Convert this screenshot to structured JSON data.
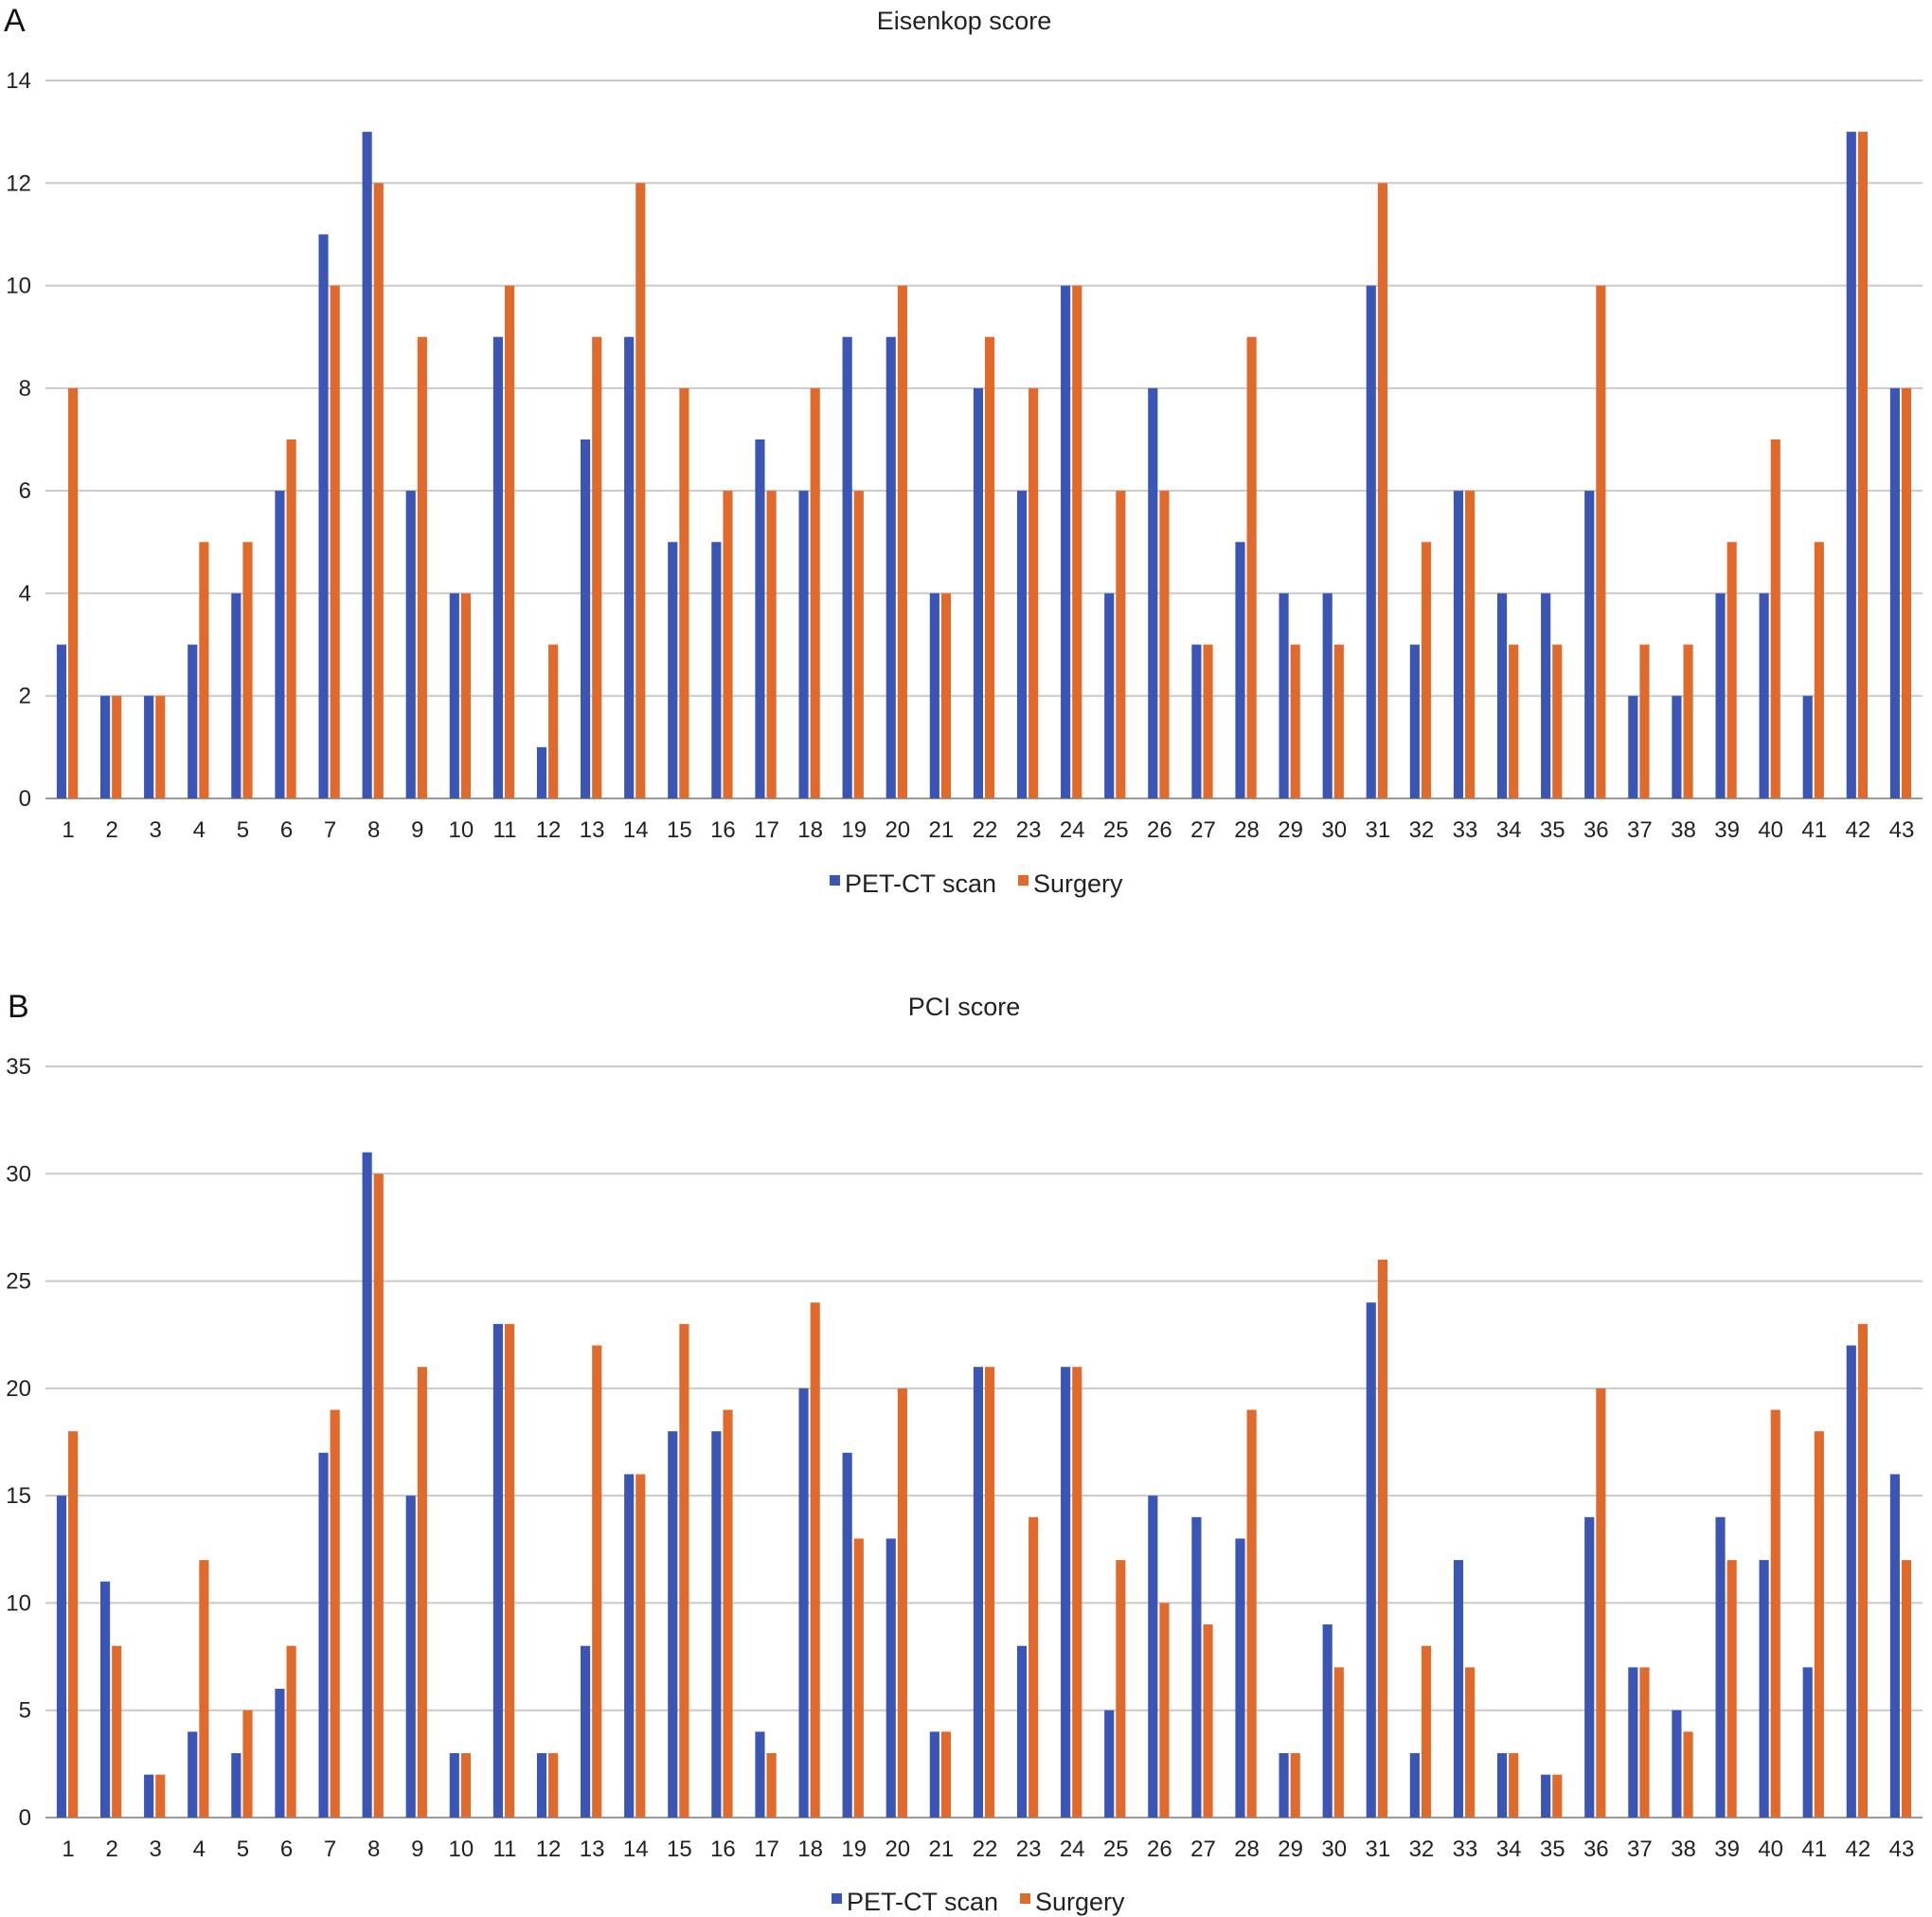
{
  "panels": [
    {
      "letter": "A",
      "legend": {
        "series1": "PET-CT scan",
        "series2": "Surgery"
      }
    },
    {
      "letter": "B",
      "legend": {
        "series1": "PET-CT scan",
        "series2": "Surgery"
      }
    }
  ],
  "colors": {
    "pet_ct": "#3a55b4",
    "surgery": "#e06a2c"
  },
  "chart_data": [
    {
      "type": "bar",
      "title": "Eisenkop score",
      "categories": [
        "1",
        "2",
        "3",
        "4",
        "5",
        "6",
        "7",
        "8",
        "9",
        "10",
        "11",
        "12",
        "13",
        "14",
        "15",
        "16",
        "17",
        "18",
        "19",
        "20",
        "21",
        "22",
        "23",
        "24",
        "25",
        "26",
        "27",
        "28",
        "29",
        "30",
        "31",
        "32",
        "33",
        "34",
        "35",
        "36",
        "37",
        "38",
        "39",
        "40",
        "41",
        "42",
        "43"
      ],
      "series": [
        {
          "name": "PET-CT scan",
          "values": [
            3,
            2,
            2,
            3,
            4,
            6,
            11,
            13,
            6,
            4,
            9,
            1,
            7,
            9,
            5,
            5,
            7,
            6,
            9,
            9,
            4,
            8,
            6,
            10,
            4,
            8,
            3,
            5,
            4,
            4,
            10,
            3,
            6,
            4,
            4,
            6,
            2,
            2,
            4,
            4,
            2,
            13,
            8
          ]
        },
        {
          "name": "Surgery",
          "values": [
            8,
            2,
            2,
            5,
            5,
            7,
            10,
            12,
            9,
            4,
            10,
            3,
            9,
            12,
            8,
            6,
            6,
            8,
            6,
            10,
            4,
            9,
            8,
            10,
            6,
            6,
            3,
            9,
            3,
            3,
            12,
            5,
            6,
            3,
            3,
            10,
            3,
            3,
            5,
            7,
            5,
            13,
            8
          ]
        }
      ],
      "ylim": [
        0,
        14
      ],
      "yticks": [
        "0",
        "2",
        "4",
        "6",
        "8",
        "10",
        "12",
        "14"
      ],
      "grid": true,
      "legend_position": "bottom"
    },
    {
      "type": "bar",
      "title": "PCI score",
      "categories": [
        "1",
        "2",
        "3",
        "4",
        "5",
        "6",
        "7",
        "8",
        "9",
        "10",
        "11",
        "12",
        "13",
        "14",
        "15",
        "16",
        "17",
        "18",
        "19",
        "20",
        "21",
        "22",
        "23",
        "24",
        "25",
        "26",
        "27",
        "28",
        "29",
        "30",
        "31",
        "32",
        "33",
        "34",
        "35",
        "36",
        "37",
        "38",
        "39",
        "40",
        "41",
        "42",
        "43"
      ],
      "series": [
        {
          "name": "PET-CT scan",
          "values": [
            15,
            11,
            2,
            4,
            3,
            6,
            17,
            31,
            15,
            3,
            23,
            3,
            8,
            16,
            18,
            18,
            4,
            20,
            17,
            13,
            4,
            21,
            8,
            21,
            5,
            15,
            14,
            13,
            3,
            9,
            24,
            3,
            12,
            3,
            2,
            14,
            7,
            5,
            14,
            12,
            7,
            22,
            16
          ]
        },
        {
          "name": "Surgery",
          "values": [
            18,
            8,
            2,
            12,
            5,
            8,
            19,
            30,
            21,
            3,
            23,
            3,
            22,
            16,
            23,
            19,
            3,
            24,
            13,
            20,
            4,
            21,
            14,
            21,
            12,
            10,
            9,
            19,
            3,
            7,
            26,
            8,
            7,
            3,
            2,
            20,
            7,
            4,
            12,
            19,
            18,
            23,
            12
          ]
        }
      ],
      "ylim": [
        0,
        35
      ],
      "yticks": [
        "0",
        "5",
        "10",
        "15",
        "20",
        "25",
        "30",
        "35"
      ],
      "grid": true,
      "legend_position": "bottom"
    }
  ]
}
